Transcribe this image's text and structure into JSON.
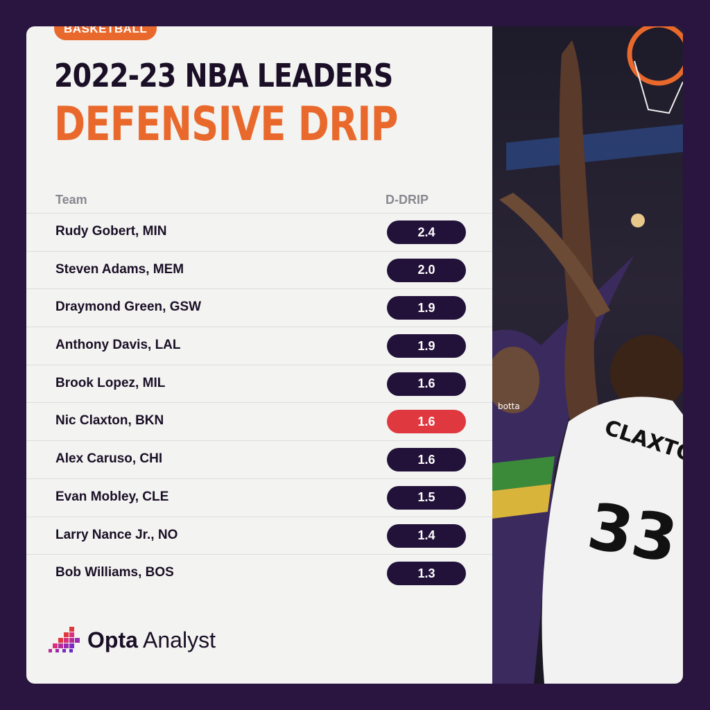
{
  "tag": "BASKETBALL",
  "title_line1": "2022-23 NBA LEADERS",
  "title_line2": "DEFENSIVE DRIP",
  "columns": {
    "team": "Team",
    "metric": "D-DRIP"
  },
  "rows": [
    {
      "player": "Rudy Gobert, MIN",
      "value": "2.4",
      "highlight": false
    },
    {
      "player": "Steven Adams, MEM",
      "value": "2.0",
      "highlight": false
    },
    {
      "player": "Draymond Green, GSW",
      "value": "1.9",
      "highlight": false
    },
    {
      "player": "Anthony Davis, LAL",
      "value": "1.9",
      "highlight": false
    },
    {
      "player": "Brook Lopez, MIL",
      "value": "1.6",
      "highlight": false
    },
    {
      "player": "Nic Claxton, BKN",
      "value": "1.6",
      "highlight": true
    },
    {
      "player": "Alex Caruso, CHI",
      "value": "1.6",
      "highlight": false
    },
    {
      "player": "Evan Mobley, CLE",
      "value": "1.5",
      "highlight": false
    },
    {
      "player": "Larry Nance Jr., NO",
      "value": "1.4",
      "highlight": false
    },
    {
      "player": "Bob Williams, BOS",
      "value": "1.3",
      "highlight": false
    }
  ],
  "photo": {
    "jersey_name": "CLAXTON",
    "jersey_number": "33",
    "sponsor": "botta"
  },
  "logo": {
    "brand_bold": "Opta",
    "brand_rest": " Analyst"
  },
  "colors": {
    "accent": "#e9692c",
    "dark": "#22123a",
    "highlight": "#e0383f",
    "background": "#2a1440"
  }
}
